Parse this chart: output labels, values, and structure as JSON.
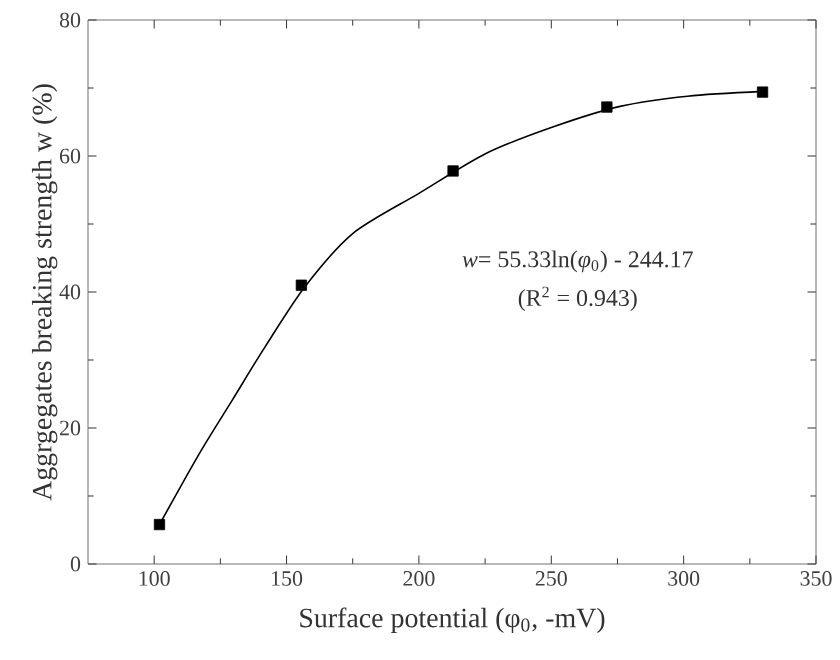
{
  "chart_data": {
    "type": "scatter",
    "xlabel": "Surface potential (φ$_{0}$, -mV)",
    "ylabel": "Aggrgegates breaking strength w (%)",
    "xlim": [
      75,
      350
    ],
    "xticks": [
      100,
      150,
      200,
      250,
      300,
      350
    ],
    "ylim": [
      0,
      80
    ],
    "yticks": [
      0,
      20,
      40,
      60,
      80
    ],
    "grid": false,
    "annotations": [
      "*w*= 55.33ln(*φ*$_{0}$) - 244.17",
      "(R$^{2}$ = 0.943)"
    ],
    "series": [
      {
        "marker": "square",
        "color": "#000000",
        "x": [
          102,
          155.6,
          212.9,
          271,
          329.8
        ],
        "values": [
          5.8,
          41.0,
          57.8,
          67.2,
          69.4
        ]
      },
      {
        "type": "line",
        "marker": "none",
        "color": "#000000",
        "line_style": "solid",
        "x": [
          102,
          117,
          129.5,
          142,
          157,
          175,
          200,
          225.5,
          250.8,
          276,
          301.5,
          330
        ],
        "values": [
          5.8,
          16.2,
          24.1,
          32,
          40.8,
          48.6,
          54.5,
          60.4,
          64.3,
          67.3,
          68.8,
          69.5
        ]
      }
    ]
  }
}
